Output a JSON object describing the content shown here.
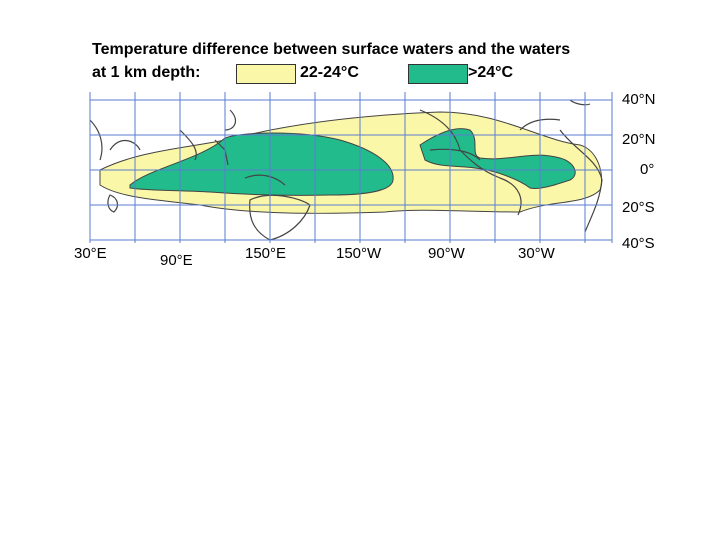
{
  "title_line1": "Temperature difference between surface waters and the waters",
  "title_line2": "at 1 km depth:",
  "legend": [
    {
      "label": "22-24°C",
      "color": "#fbf7a8"
    },
    {
      "label": ">24°C",
      "color": "#21bb8c"
    }
  ],
  "latitude_labels": [
    "40°N",
    "20°N",
    "0°",
    "20°S",
    "40°S"
  ],
  "longitude_labels": [
    "30°E",
    "90°E",
    "150°E",
    "150°W",
    "90°W",
    "30°W"
  ],
  "colors": {
    "grid": "#5a7dd0",
    "coast": "#444444",
    "zone_outline": "#444444"
  }
}
